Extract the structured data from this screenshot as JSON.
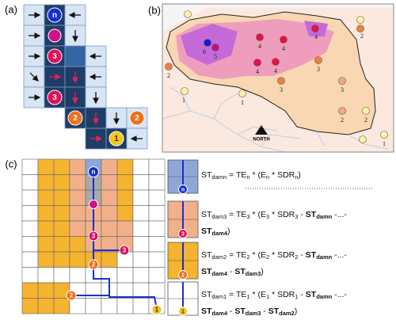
{
  "panel_labels": [
    "(a)",
    "(b)",
    "(c)"
  ],
  "panel_a": {
    "circle_labels": [
      "n",
      "3",
      "3",
      "2",
      "2",
      "1"
    ]
  },
  "panel_b": {
    "station_labels": [
      "2",
      "6",
      "5",
      "4",
      "4",
      "4",
      "4",
      "4",
      "3",
      "3",
      "3",
      "2",
      "1",
      "1",
      "2",
      "2",
      "1"
    ],
    "north": "NORTH"
  },
  "panel_c": {
    "circle_labels": [
      "n",
      "3",
      "3",
      "2",
      "2",
      "1"
    ],
    "legend_circle_labels": [
      "n",
      "3",
      "2",
      "1"
    ],
    "equations": [
      [
        "ST",
        "damn",
        " = TE",
        "n",
        " * (E",
        "n",
        " * SDR",
        "n",
        ")"
      ],
      [
        "ST",
        "dam3",
        " = TE",
        "3",
        " * (E",
        "3",
        " * SDR",
        "3",
        " - ",
        "ST",
        "damn",
        " -...- ",
        "ST",
        "dam4",
        ")"
      ],
      [
        "ST",
        "dam2",
        " = TE",
        "2",
        " * (E",
        "2",
        " * SDR",
        "2",
        " - ",
        "ST",
        "damn",
        " -...- ",
        "ST",
        "dam4",
        " - ",
        "ST",
        "dam3",
        ")"
      ],
      [
        "ST",
        "dam1",
        " = TE",
        "1",
        " * (E",
        "1",
        " * SDR",
        "1",
        " - ",
        "ST",
        "damn",
        " -...- ",
        "ST",
        "dam4",
        " - ",
        "ST",
        "dam3",
        " - ",
        "ST",
        "dam2",
        ")"
      ]
    ]
  }
}
